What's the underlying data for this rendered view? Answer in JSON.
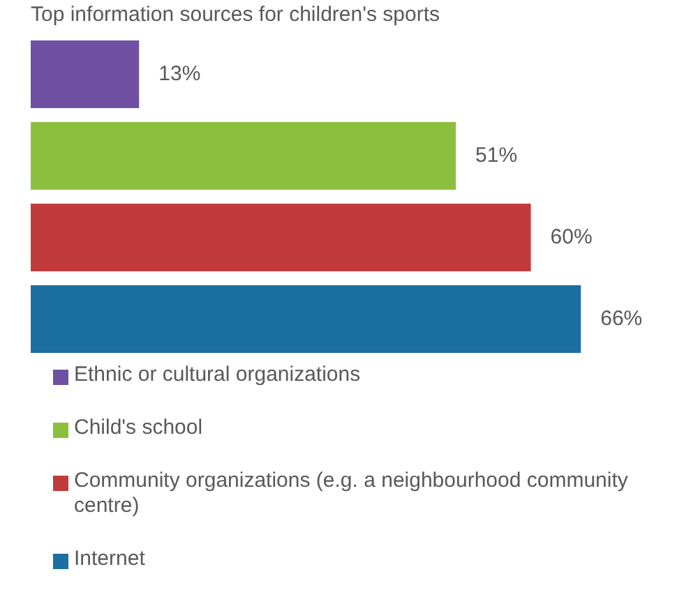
{
  "chart_data": {
    "type": "bar",
    "orientation": "horizontal",
    "title": "Top information sources for children's sports",
    "categories": [
      null
    ],
    "legend": "bottom",
    "series": [
      {
        "name": "Ethnic or cultural organizations",
        "color": "#7050a2",
        "values": [
          13
        ],
        "value_labels": [
          "13%"
        ]
      },
      {
        "name": "Child's school",
        "color": "#8dbf3e",
        "values": [
          51
        ],
        "value_labels": [
          "51%"
        ]
      },
      {
        "name": "Community organizations (e.g. a neighbourhood community centre)",
        "color": "#c23b3c",
        "values": [
          60
        ],
        "value_labels": [
          "60%"
        ]
      },
      {
        "name": "Internet",
        "color": "#1b6fa3",
        "values": [
          66
        ],
        "value_labels": [
          "66%"
        ]
      }
    ]
  }
}
